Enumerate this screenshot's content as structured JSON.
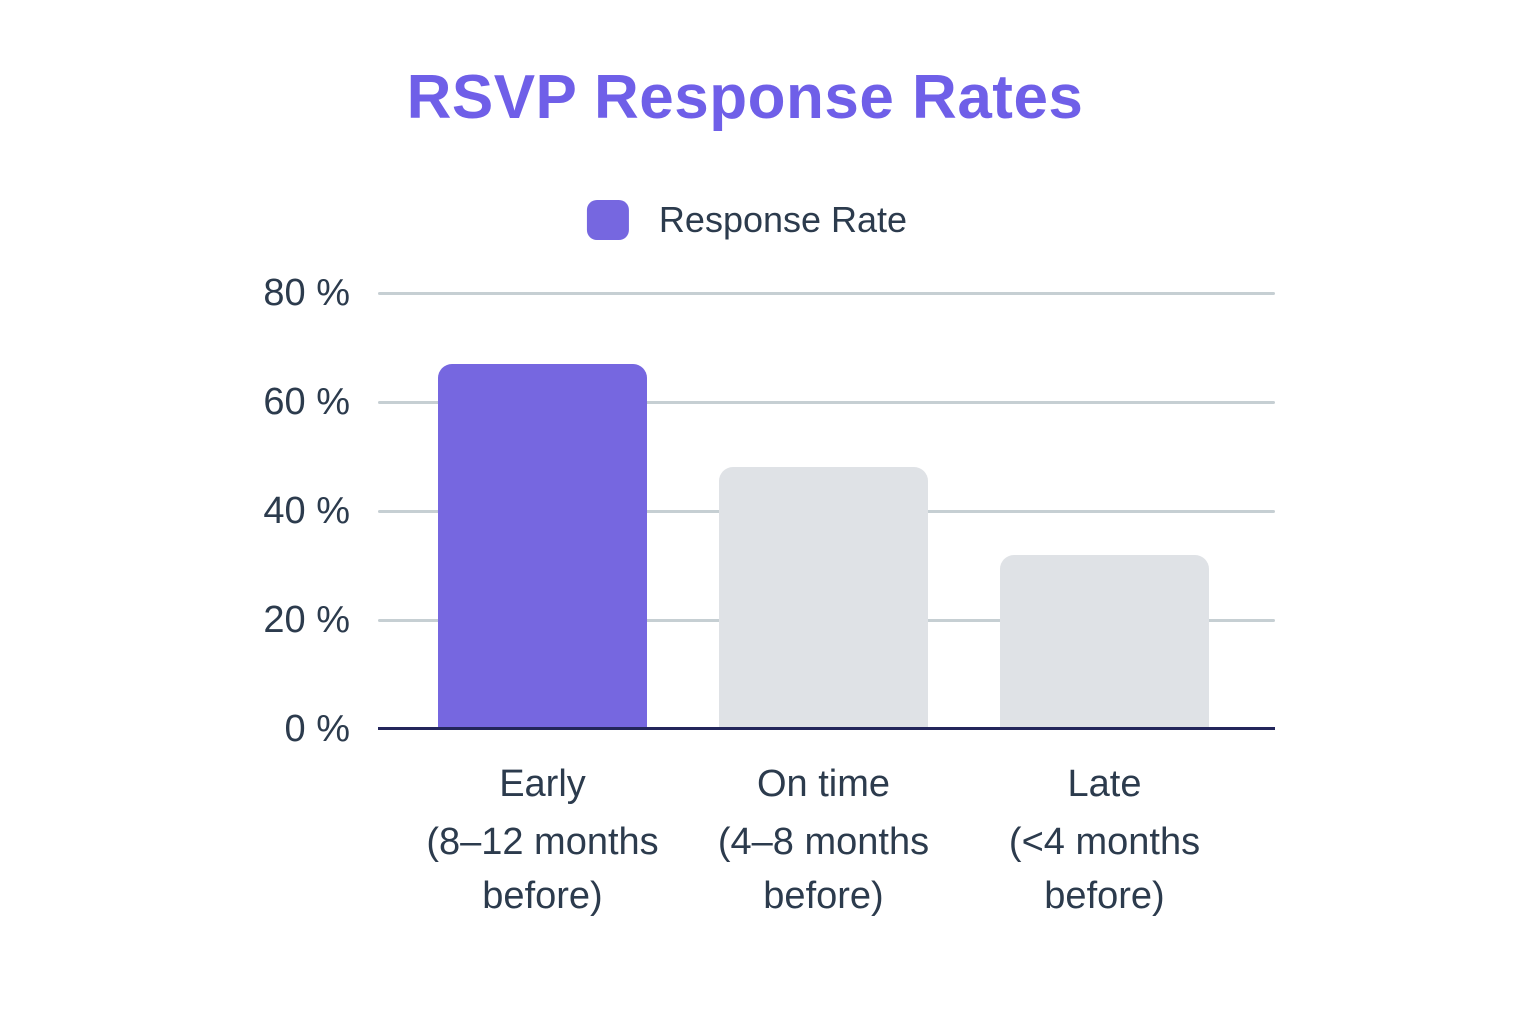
{
  "chart_data": {
    "type": "bar",
    "title": "RSVP Response Rates",
    "categories": [
      "Early",
      "On time",
      "Late"
    ],
    "category_sublabels": [
      [
        "(8–12 months",
        "before)"
      ],
      [
        "(4–8 months",
        "before)"
      ],
      [
        "(<4 months",
        "before)"
      ]
    ],
    "series": [
      {
        "name": "Response Rate",
        "color": "#7667E0",
        "values": [
          67,
          48,
          32
        ]
      }
    ],
    "bar_colors": [
      "#7667E0",
      "#DFE2E6",
      "#DFE2E6"
    ],
    "ylim": [
      0,
      80
    ],
    "yticks": [
      0,
      20,
      40,
      60,
      80
    ],
    "ytick_labels": [
      "0 %",
      "20 %",
      "40 %",
      "60 %",
      "80 %"
    ],
    "grid": true,
    "legend_position": "top",
    "xlabel": "",
    "ylabel": "",
    "colors": {
      "title": "#6F5FE8",
      "accent": "#7667E0",
      "muted_bar": "#DFE2E6",
      "text": "#2C3B4D",
      "gridline": "#C6CFD3",
      "axis_line": "#23265B",
      "background": "#FFFFFF"
    }
  }
}
